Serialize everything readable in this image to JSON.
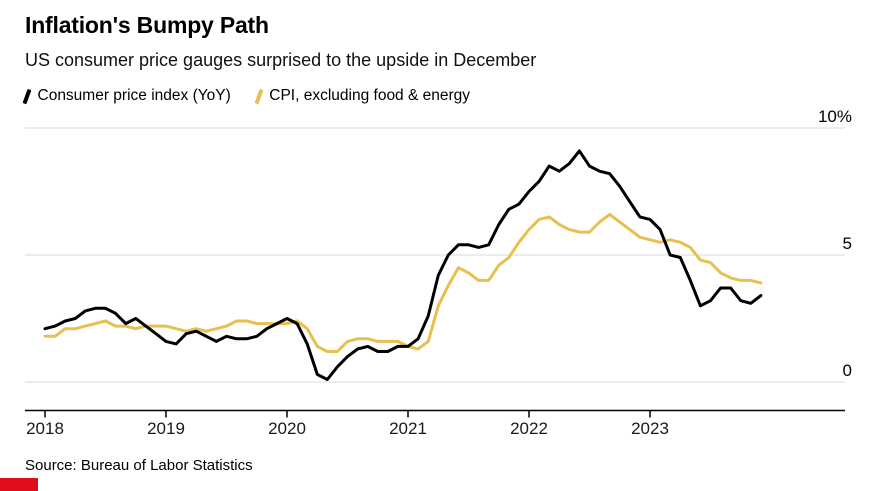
{
  "header": {
    "title": "Inflation's Bumpy Path",
    "subtitle": "US consumer price gauges surprised to the upside in December"
  },
  "legend": [
    {
      "label": "Consumer price index (YoY)",
      "color": "#000000"
    },
    {
      "label": "CPI, excluding food & energy",
      "color": "#e8c050"
    }
  ],
  "source": "Source: Bureau of Labor Statistics",
  "accent": {
    "red_mark_color": "#e00e1d"
  },
  "chart_data": {
    "type": "line",
    "title": "Inflation's Bumpy Path",
    "subtitle": "US consumer price gauges surprised to the upside in December",
    "x_unit": "month",
    "x_start": "2018-01",
    "x_end": "2023-12",
    "x_tick_labels": [
      "2018",
      "2019",
      "2020",
      "2021",
      "2022",
      "2023"
    ],
    "y_tick_labels": [
      "10%",
      "5",
      "0"
    ],
    "y_ticks": [
      10,
      5,
      0
    ],
    "ylim": [
      -0.6,
      10.6
    ],
    "grid": "horizontal",
    "legend_position": "top-left",
    "series": [
      {
        "name": "Consumer price index (YoY)",
        "color": "#000000",
        "values": [
          2.1,
          2.2,
          2.4,
          2.5,
          2.8,
          2.9,
          2.9,
          2.7,
          2.3,
          2.5,
          2.2,
          1.9,
          1.6,
          1.5,
          1.9,
          2.0,
          1.8,
          1.6,
          1.8,
          1.7,
          1.7,
          1.8,
          2.1,
          2.3,
          2.5,
          2.3,
          1.5,
          0.3,
          0.1,
          0.6,
          1.0,
          1.3,
          1.4,
          1.2,
          1.2,
          1.4,
          1.4,
          1.7,
          2.6,
          4.2,
          5.0,
          5.4,
          5.4,
          5.3,
          5.4,
          6.2,
          6.8,
          7.0,
          7.5,
          7.9,
          8.5,
          8.3,
          8.6,
          9.1,
          8.5,
          8.3,
          8.2,
          7.7,
          7.1,
          6.5,
          6.4,
          6.0,
          5.0,
          4.9,
          4.0,
          3.0,
          3.2,
          3.7,
          3.7,
          3.2,
          3.1,
          3.4
        ]
      },
      {
        "name": "CPI, excluding food & energy",
        "color": "#e8c050",
        "values": [
          1.8,
          1.8,
          2.1,
          2.1,
          2.2,
          2.3,
          2.4,
          2.2,
          2.2,
          2.1,
          2.2,
          2.2,
          2.2,
          2.1,
          2.0,
          2.1,
          2.0,
          2.1,
          2.2,
          2.4,
          2.4,
          2.3,
          2.3,
          2.3,
          2.3,
          2.4,
          2.1,
          1.4,
          1.2,
          1.2,
          1.6,
          1.7,
          1.7,
          1.6,
          1.6,
          1.6,
          1.4,
          1.3,
          1.6,
          3.0,
          3.8,
          4.5,
          4.3,
          4.0,
          4.0,
          4.6,
          4.9,
          5.5,
          6.0,
          6.4,
          6.5,
          6.2,
          6.0,
          5.9,
          5.9,
          6.3,
          6.6,
          6.3,
          6.0,
          5.7,
          5.6,
          5.5,
          5.6,
          5.5,
          5.3,
          4.8,
          4.7,
          4.3,
          4.1,
          4.0,
          4.0,
          3.9
        ]
      }
    ]
  }
}
